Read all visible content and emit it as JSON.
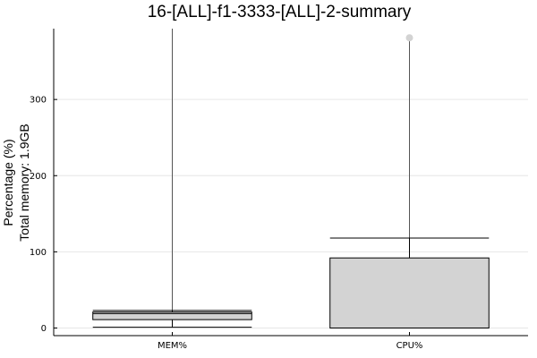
{
  "chart_data": {
    "type": "boxplot",
    "title": "16-[ALL]-f1-3333-[ALL]-2-summary",
    "ylabel_lines": [
      "Percentage (%)",
      "Total memory: 1.9GB"
    ],
    "xlabel": "",
    "categories": [
      "MEM%",
      "CPU%"
    ],
    "ylim": [
      -10,
      393
    ],
    "yticks": [
      0,
      100,
      200,
      300
    ],
    "grid": true,
    "legend": "none",
    "box_color": "#d3d3d3",
    "outlier_color": "#d3d3d3",
    "boxes": [
      {
        "category": "MEM%",
        "whisker_low": 1,
        "q1": 11,
        "median": 19,
        "q3": 21,
        "whisker_high": 23,
        "max_line": 393,
        "outliers": []
      },
      {
        "category": "CPU%",
        "whisker_low": 0,
        "q1": 0,
        "median": 0,
        "q3": 92,
        "whisker_high": 118,
        "max_line": 380,
        "outliers": [
          381
        ]
      }
    ]
  }
}
